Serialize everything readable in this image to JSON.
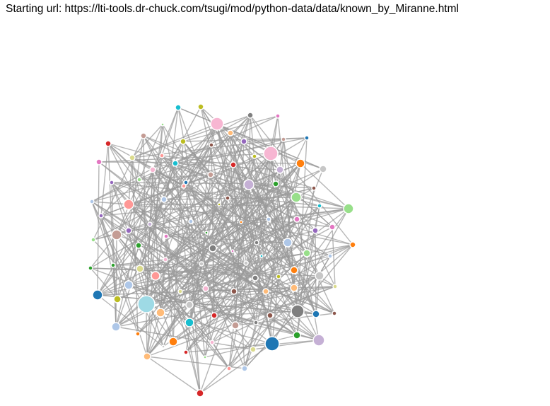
{
  "header": {
    "starting_url_label": "Starting url: https://lti-tools.dr-chuck.com/tsugi/mod/python-data/data/known_by_Miranne.html"
  },
  "graph": {
    "type": "force-directed network",
    "link_color": "#999999",
    "node_outline_color": "#ffffff",
    "palette": [
      "#1f77b4",
      "#aec7e8",
      "#ff7f0e",
      "#ffbb78",
      "#2ca02c",
      "#98df8a",
      "#d62728",
      "#ff9896",
      "#9467bd",
      "#c5b0d5",
      "#8c564b",
      "#c49c94",
      "#e377c2",
      "#f7b6d2",
      "#7f7f7f",
      "#c7c7c7",
      "#bcbd22",
      "#dbdb8d",
      "#17becf",
      "#9edae5"
    ]
  }
}
